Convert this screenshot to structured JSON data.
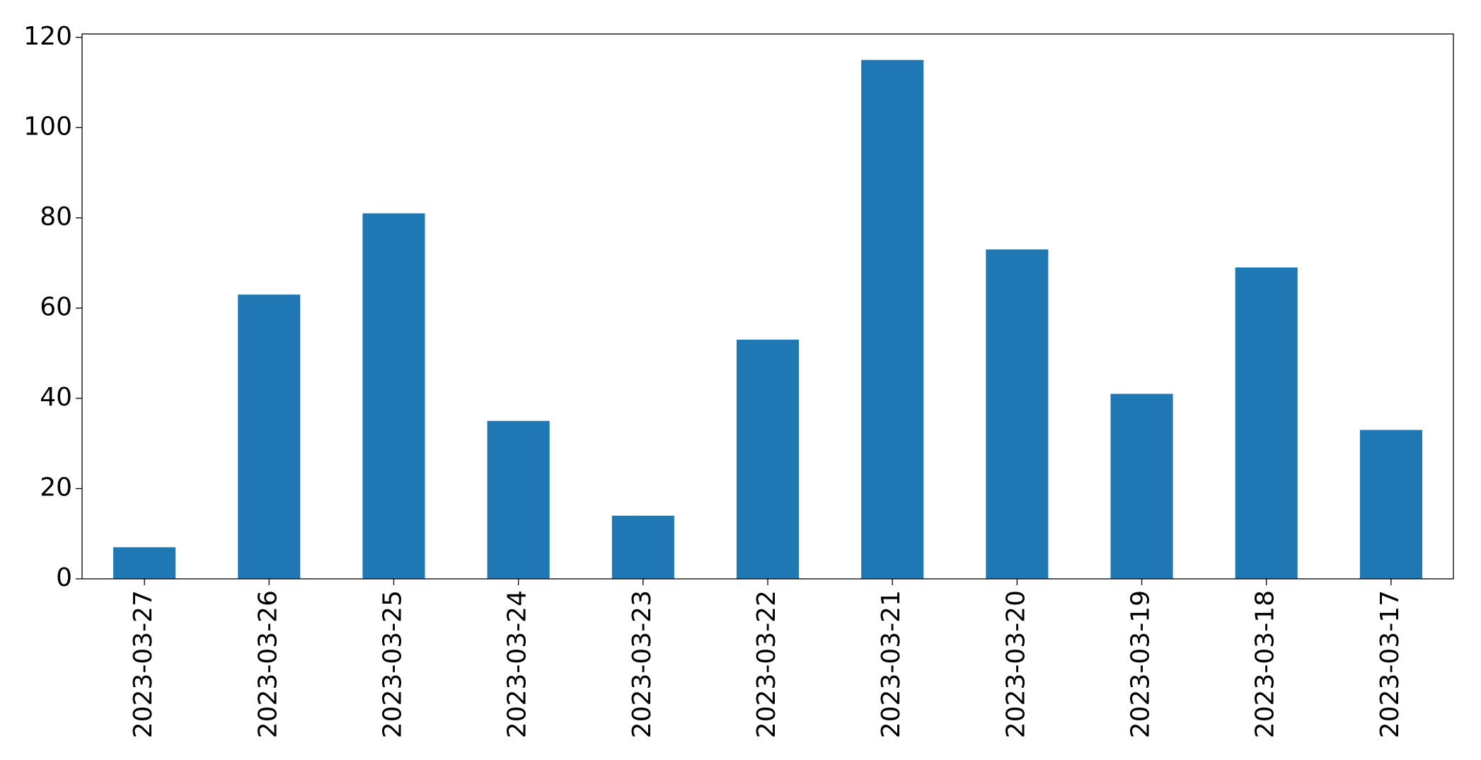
{
  "chart_data": {
    "type": "bar",
    "categories": [
      "2023-03-27",
      "2023-03-26",
      "2023-03-25",
      "2023-03-24",
      "2023-03-23",
      "2023-03-22",
      "2023-03-21",
      "2023-03-20",
      "2023-03-19",
      "2023-03-18",
      "2023-03-17"
    ],
    "values": [
      7,
      63,
      81,
      35,
      14,
      53,
      115,
      73,
      41,
      69,
      33
    ],
    "color": "#1f77b4",
    "ylim": [
      0,
      120.75
    ],
    "yticks": [
      0,
      20,
      40,
      60,
      80,
      100,
      120
    ],
    "grid": false
  }
}
